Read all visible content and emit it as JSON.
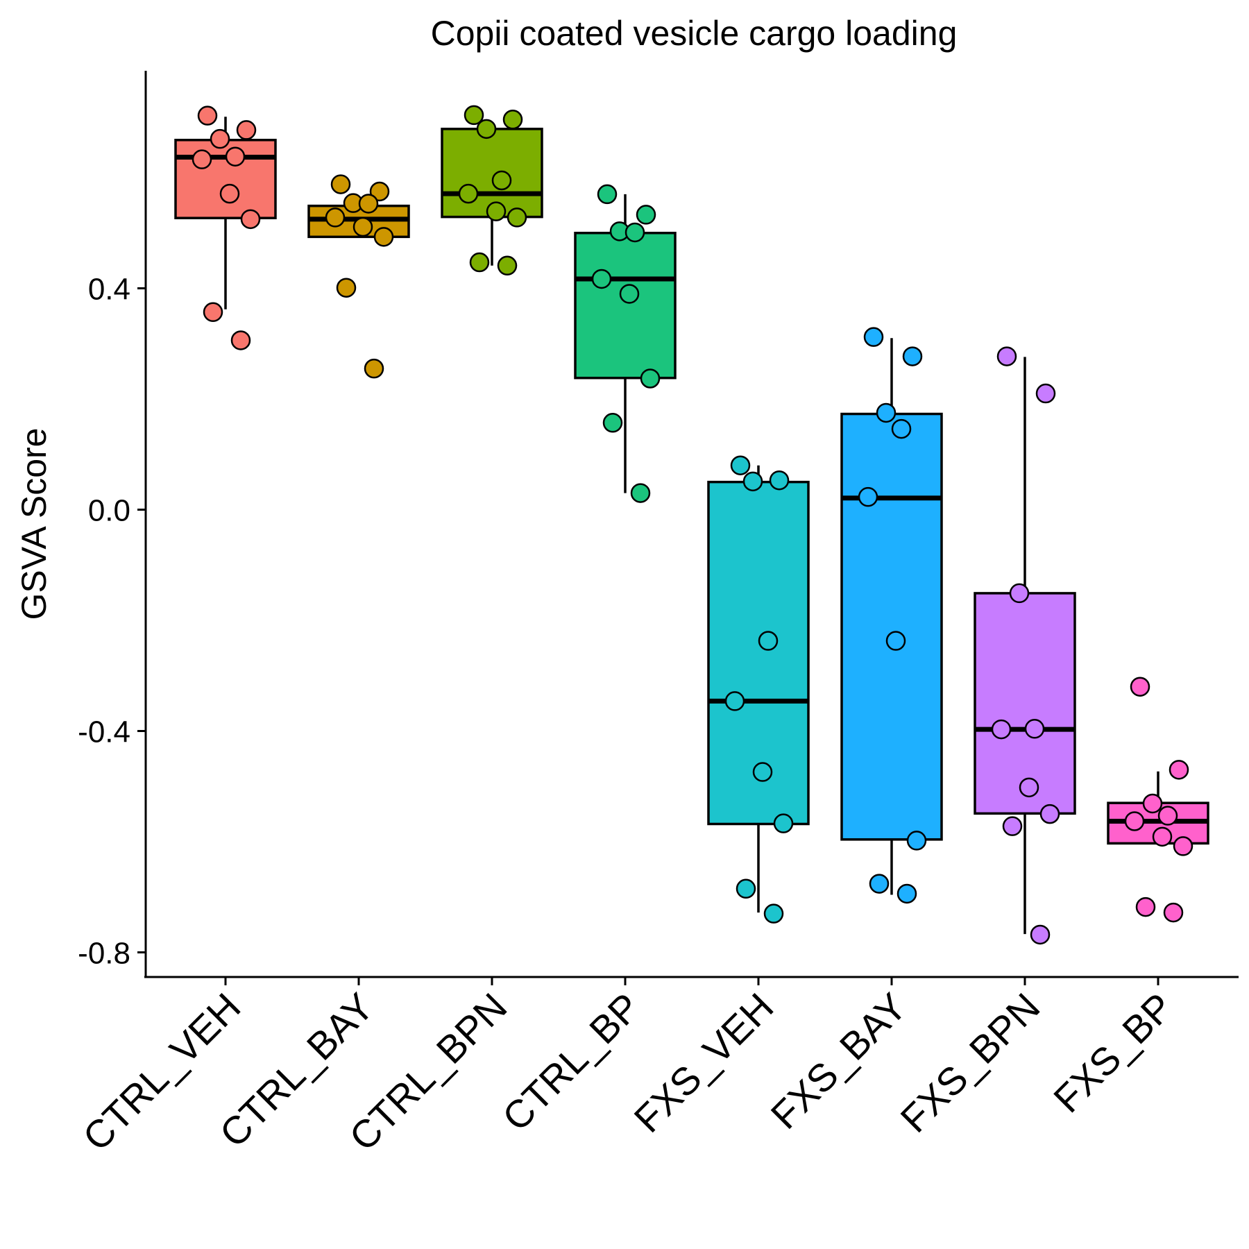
{
  "chart_data": {
    "type": "box",
    "title": "Copii coated vesicle cargo loading",
    "xlabel": "",
    "ylabel": "GSVA Score",
    "ylim": [
      -0.84,
      0.79
    ],
    "yticks": [
      -0.8,
      -0.4,
      0.0,
      0.4
    ],
    "ytick_labels": [
      "-0.8",
      "-0.4",
      "0.0",
      "0.4"
    ],
    "grid": false,
    "legend": "none",
    "groups": [
      {
        "name": "CTRL_VEH",
        "color": "#F8766D",
        "q1": 0.527,
        "median": 0.637,
        "q3": 0.668,
        "whisker_low": 0.362,
        "whisker_high": 0.71,
        "points": [
          0.712,
          0.686,
          0.67,
          0.638,
          0.633,
          0.571,
          0.525,
          0.357,
          0.306
        ]
      },
      {
        "name": "CTRL_BAY",
        "color": "#CD9600",
        "q1": 0.493,
        "median": 0.525,
        "q3": 0.549,
        "whisker_low": 0.493,
        "whisker_high": 0.549,
        "points": [
          0.588,
          0.575,
          0.554,
          0.553,
          0.528,
          0.511,
          0.493,
          0.401,
          0.255
        ]
      },
      {
        "name": "CTRL_BPN",
        "color": "#7CAE00",
        "q1": 0.529,
        "median": 0.571,
        "q3": 0.688,
        "whisker_low": 0.441,
        "whisker_high": 0.688,
        "points": [
          0.713,
          0.705,
          0.688,
          0.595,
          0.571,
          0.539,
          0.528,
          0.447,
          0.441
        ]
      },
      {
        "name": "CTRL_BP",
        "color": "#1BC47D",
        "q1": 0.238,
        "median": 0.417,
        "q3": 0.5,
        "whisker_low": 0.03,
        "whisker_high": 0.57,
        "points": [
          0.57,
          0.533,
          0.503,
          0.501,
          0.417,
          0.39,
          0.237,
          0.157,
          0.03
        ]
      },
      {
        "name": "FXS_VEH",
        "color": "#1CC4CD",
        "q1": -0.568,
        "median": -0.346,
        "q3": 0.05,
        "whisker_low": -0.728,
        "whisker_high": 0.08,
        "points": [
          0.08,
          0.053,
          0.051,
          -0.237,
          -0.346,
          -0.474,
          -0.567,
          -0.685,
          -0.73
        ]
      },
      {
        "name": "FXS_BAY",
        "color": "#1EB0FF",
        "q1": -0.596,
        "median": 0.021,
        "q3": 0.173,
        "whisker_low": -0.696,
        "whisker_high": 0.31,
        "points": [
          0.312,
          0.277,
          0.175,
          0.146,
          0.023,
          -0.237,
          -0.598,
          -0.676,
          -0.694
        ]
      },
      {
        "name": "FXS_BPN",
        "color": "#C77CFF",
        "q1": -0.549,
        "median": -0.397,
        "q3": -0.151,
        "whisker_low": -0.767,
        "whisker_high": 0.276,
        "points": [
          0.277,
          0.21,
          -0.151,
          -0.396,
          -0.397,
          -0.502,
          -0.55,
          -0.572,
          -0.768
        ]
      },
      {
        "name": "FXS_BP",
        "color": "#FF61CC",
        "q1": -0.603,
        "median": -0.563,
        "q3": -0.53,
        "whisker_low": -0.603,
        "whisker_high": -0.473,
        "points": [
          -0.32,
          -0.47,
          -0.531,
          -0.553,
          -0.563,
          -0.591,
          -0.608,
          -0.718,
          -0.728
        ]
      }
    ]
  }
}
